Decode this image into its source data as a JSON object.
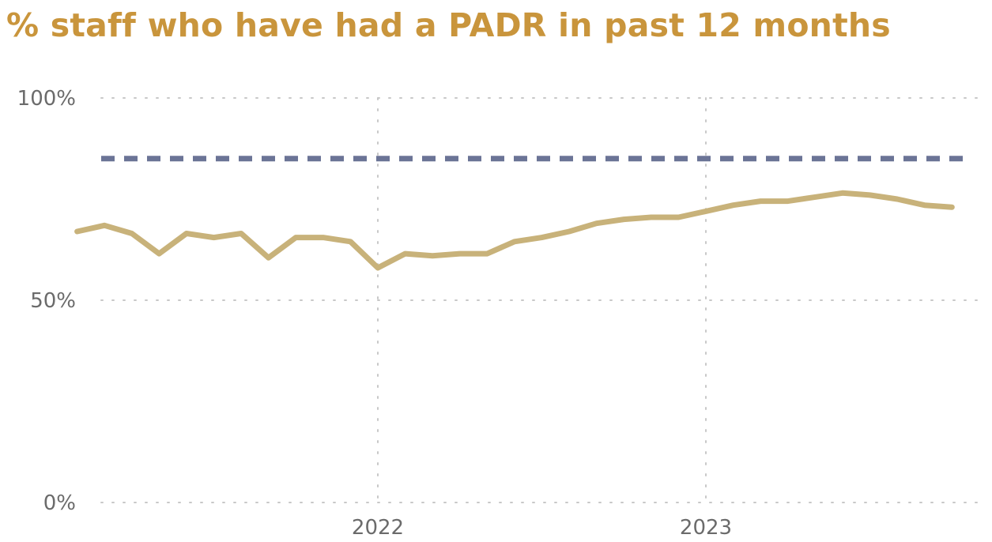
{
  "chart_data": {
    "type": "line",
    "title": "% staff who have had a PADR in past 12 months",
    "xlabel": "",
    "ylabel": "",
    "ylim": [
      0,
      100
    ],
    "y_ticks": [
      {
        "value": 0,
        "label": "0%"
      },
      {
        "value": 50,
        "label": "50%"
      },
      {
        "value": 100,
        "label": "100%"
      }
    ],
    "x_ticks": [
      {
        "date": "2022-01",
        "label": "2022"
      },
      {
        "date": "2023-01",
        "label": "2023"
      }
    ],
    "x_range": [
      "2021-01",
      "2024-03"
    ],
    "grid": true,
    "target": {
      "value": 85,
      "color": "#6b7496",
      "style": "dashed"
    },
    "series": [
      {
        "color": "#c8b27a",
        "x": [
          "2021-02",
          "2021-03",
          "2021-04",
          "2021-05",
          "2021-06",
          "2021-07",
          "2021-08",
          "2021-09",
          "2021-10",
          "2021-11",
          "2021-12",
          "2022-01",
          "2022-02",
          "2022-03",
          "2022-04",
          "2022-05",
          "2022-06",
          "2022-07",
          "2022-08",
          "2022-09",
          "2022-10",
          "2022-11",
          "2022-12",
          "2023-01",
          "2023-02",
          "2023-03",
          "2023-04",
          "2023-05",
          "2023-06",
          "2023-07",
          "2023-08",
          "2023-09",
          "2023-10"
        ],
        "values": [
          67,
          68.5,
          66.5,
          61.5,
          66.5,
          65.5,
          66.5,
          60.5,
          65.5,
          65.5,
          64.5,
          58,
          61.5,
          61,
          61.5,
          61.5,
          64.5,
          65.5,
          67,
          69,
          70,
          70.5,
          70.5,
          72,
          73.5,
          74.5,
          74.5,
          75.5,
          76.5,
          76,
          75,
          73.5,
          73
        ]
      }
    ]
  },
  "colors": {
    "title": "#c9953c",
    "grid": "#c8c8c8",
    "axis_text": "#6b6b6b"
  }
}
